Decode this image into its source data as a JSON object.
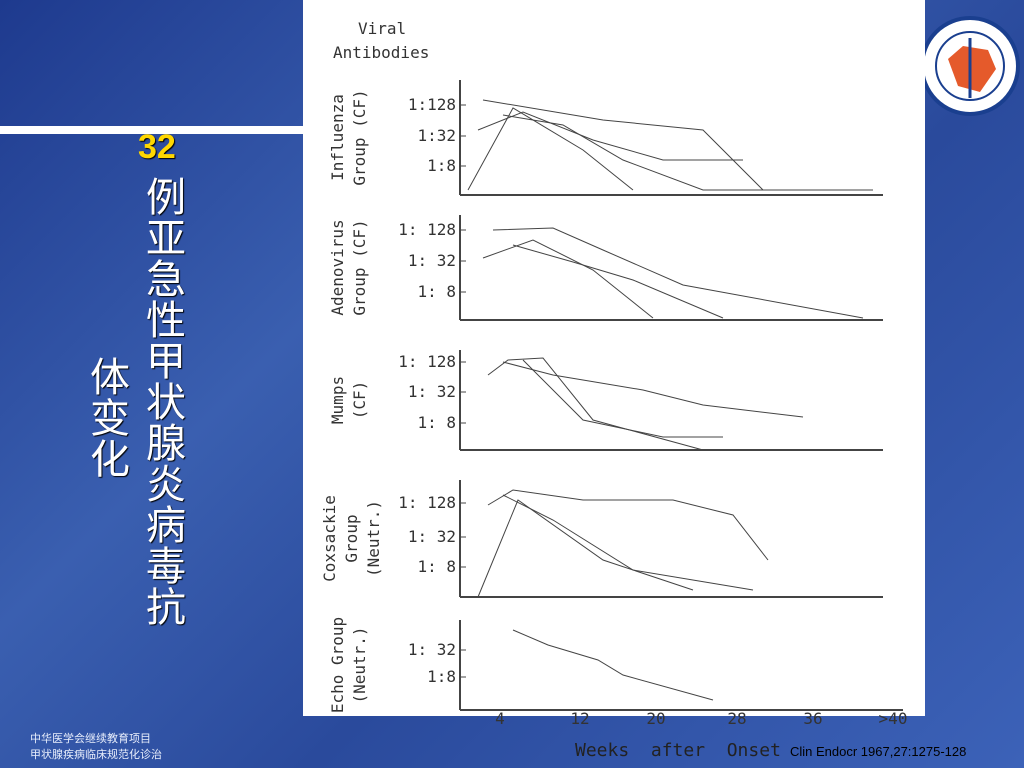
{
  "slide": {
    "title": [
      "32",
      "例亚急性甲状腺炎病毒抗",
      "体变化"
    ],
    "footer": [
      "中华医学会继续教育项目",
      "甲状腺疾病临床规范化诊治"
    ],
    "citation": "Clin Endocr  1967,27:1275-128",
    "figure": {
      "heading": [
        "Viral",
        "Antibodies"
      ],
      "panels": [
        {
          "label": [
            "Influenza",
            "Group (CF)"
          ],
          "ticks": [
            "1:128",
            "1:32",
            "1:8"
          ]
        },
        {
          "label": [
            "Adenovirus",
            "Group (CF)"
          ],
          "ticks": [
            "1: 128",
            "1:  32",
            "1: 8"
          ]
        },
        {
          "label": [
            "Mumps",
            "(CF)"
          ],
          "ticks": [
            "1: 128",
            "1: 32",
            "1:  8"
          ]
        },
        {
          "label": [
            "Coxsackie",
            "Group",
            "(Neutr.)"
          ],
          "ticks": [
            "1: 128",
            "1:  32",
            "1:  8"
          ]
        },
        {
          "label": [
            "Echo Group",
            "(Neutr.)"
          ],
          "ticks": [
            "1:  32",
            "1:8"
          ]
        }
      ],
      "x_ticks": [
        "4",
        "12",
        "20",
        "28",
        "36",
        ">40"
      ],
      "x_label": "Weeks  after  Onset"
    }
  }
}
